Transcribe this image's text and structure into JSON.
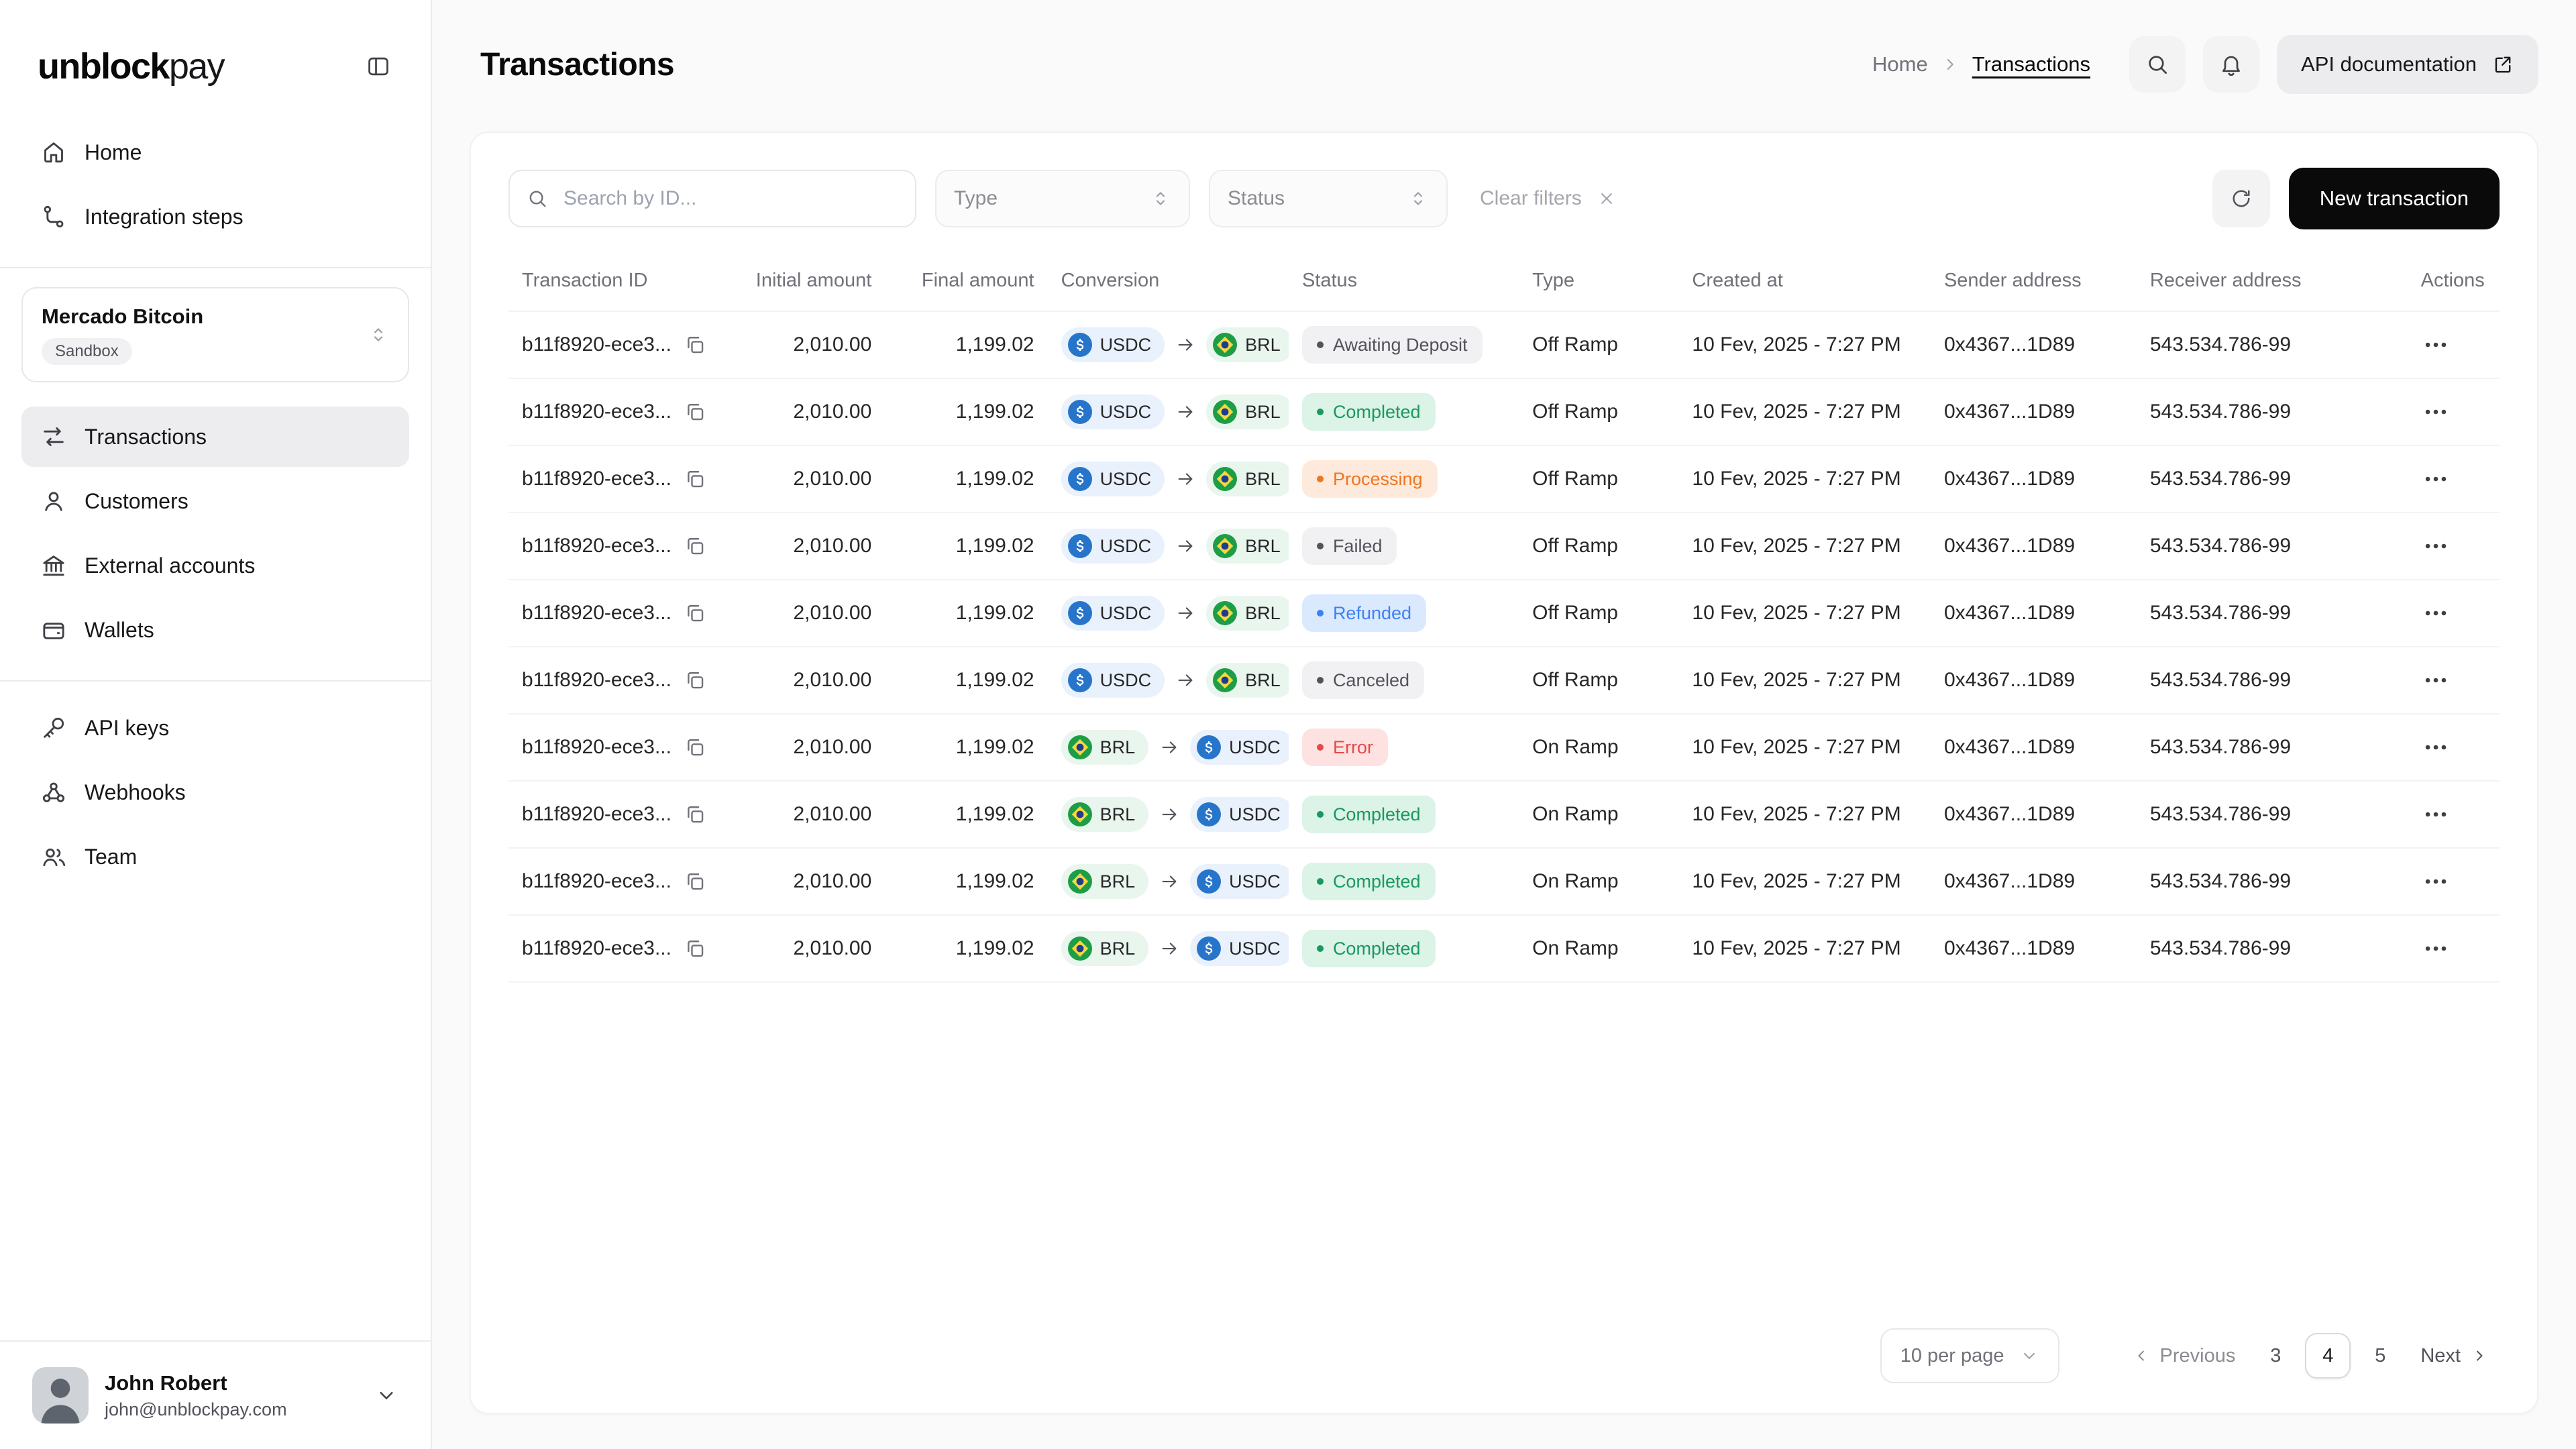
{
  "brand": {
    "name_bold": "unblock",
    "name_light": "pay"
  },
  "sidebar": {
    "primary": [
      {
        "label": "Home",
        "icon": "home"
      },
      {
        "label": "Integration steps",
        "icon": "steps"
      }
    ],
    "workspace": {
      "name": "Mercado Bitcoin",
      "badge": "Sandbox"
    },
    "main": [
      {
        "label": "Transactions",
        "icon": "transactions",
        "active": true
      },
      {
        "label": "Customers",
        "icon": "customers"
      },
      {
        "label": "External accounts",
        "icon": "bank"
      },
      {
        "label": "Wallets",
        "icon": "wallet"
      }
    ],
    "secondary": [
      {
        "label": "API keys",
        "icon": "key"
      },
      {
        "label": "Webhooks",
        "icon": "webhook"
      },
      {
        "label": "Team",
        "icon": "team"
      }
    ],
    "user": {
      "name": "John Robert",
      "email": "john@unblockpay.com"
    }
  },
  "header": {
    "title": "Transactions",
    "breadcrumb": {
      "home": "Home",
      "current": "Transactions"
    },
    "api_button": "API documentation"
  },
  "toolbar": {
    "search_placeholder": "Search by ID...",
    "type_placeholder": "Type",
    "status_placeholder": "Status",
    "clear_filters": "Clear filters",
    "new_transaction": "New transaction"
  },
  "table": {
    "columns": [
      "Transaction ID",
      "Initial amount",
      "Final amount",
      "Conversion",
      "Status",
      "Type",
      "Created at",
      "Sender address",
      "Receiver address",
      "Actions"
    ],
    "rows": [
      {
        "id": "b11f8920-ece3...",
        "initial": "2,010.00",
        "final": "1,199.02",
        "from": "USDC",
        "to": "BRL",
        "status": "Awaiting Deposit",
        "status_color": "gray",
        "type": "Off Ramp",
        "created": "10 Fev, 2025 - 7:27 PM",
        "sender": "0x4367...1D89",
        "receiver": "543.534.786-99"
      },
      {
        "id": "b11f8920-ece3...",
        "initial": "2,010.00",
        "final": "1,199.02",
        "from": "USDC",
        "to": "BRL",
        "status": "Completed",
        "status_color": "green",
        "type": "Off Ramp",
        "created": "10 Fev, 2025 - 7:27 PM",
        "sender": "0x4367...1D89",
        "receiver": "543.534.786-99"
      },
      {
        "id": "b11f8920-ece3...",
        "initial": "2,010.00",
        "final": "1,199.02",
        "from": "USDC",
        "to": "BRL",
        "status": "Processing",
        "status_color": "orange",
        "type": "Off Ramp",
        "created": "10 Fev, 2025 - 7:27 PM",
        "sender": "0x4367...1D89",
        "receiver": "543.534.786-99"
      },
      {
        "id": "b11f8920-ece3...",
        "initial": "2,010.00",
        "final": "1,199.02",
        "from": "USDC",
        "to": "BRL",
        "status": "Failed",
        "status_color": "gray",
        "type": "Off Ramp",
        "created": "10 Fev, 2025 - 7:27 PM",
        "sender": "0x4367...1D89",
        "receiver": "543.534.786-99"
      },
      {
        "id": "b11f8920-ece3...",
        "initial": "2,010.00",
        "final": "1,199.02",
        "from": "USDC",
        "to": "BRL",
        "status": "Refunded",
        "status_color": "blue",
        "type": "Off Ramp",
        "created": "10 Fev, 2025 - 7:27 PM",
        "sender": "0x4367...1D89",
        "receiver": "543.534.786-99"
      },
      {
        "id": "b11f8920-ece3...",
        "initial": "2,010.00",
        "final": "1,199.02",
        "from": "USDC",
        "to": "BRL",
        "status": "Canceled",
        "status_color": "gray",
        "type": "Off Ramp",
        "created": "10 Fev, 2025 - 7:27 PM",
        "sender": "0x4367...1D89",
        "receiver": "543.534.786-99"
      },
      {
        "id": "b11f8920-ece3...",
        "initial": "2,010.00",
        "final": "1,199.02",
        "from": "BRL",
        "to": "USDC",
        "status": "Error",
        "status_color": "red",
        "type": "On Ramp",
        "created": "10 Fev, 2025 - 7:27 PM",
        "sender": "0x4367...1D89",
        "receiver": "543.534.786-99"
      },
      {
        "id": "b11f8920-ece3...",
        "initial": "2,010.00",
        "final": "1,199.02",
        "from": "BRL",
        "to": "USDC",
        "status": "Completed",
        "status_color": "green",
        "type": "On Ramp",
        "created": "10 Fev, 2025 - 7:27 PM",
        "sender": "0x4367...1D89",
        "receiver": "543.534.786-99"
      },
      {
        "id": "b11f8920-ece3...",
        "initial": "2,010.00",
        "final": "1,199.02",
        "from": "BRL",
        "to": "USDC",
        "status": "Completed",
        "status_color": "green",
        "type": "On Ramp",
        "created": "10 Fev, 2025 - 7:27 PM",
        "sender": "0x4367...1D89",
        "receiver": "543.534.786-99"
      },
      {
        "id": "b11f8920-ece3...",
        "initial": "2,010.00",
        "final": "1,199.02",
        "from": "BRL",
        "to": "USDC",
        "status": "Completed",
        "status_color": "green",
        "type": "On Ramp",
        "created": "10 Fev, 2025 - 7:27 PM",
        "sender": "0x4367...1D89",
        "receiver": "543.534.786-99"
      }
    ]
  },
  "pagination": {
    "per_page": "10 per page",
    "previous": "Previous",
    "next": "Next",
    "pages": [
      "3",
      "4",
      "5"
    ],
    "active_page": "4"
  },
  "colors": {
    "accent_dark": "#0a0a0a",
    "status_green": "#17995f",
    "status_orange": "#ef7520",
    "status_blue": "#3b82f6",
    "status_red": "#e5484d",
    "usdc_blue": "#2775CA",
    "brl_green": "#1d9e46"
  }
}
